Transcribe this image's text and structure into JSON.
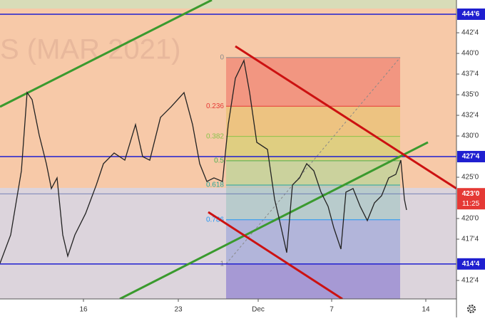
{
  "chart_data": {
    "type": "line",
    "watermark": "S (MAR 2021)",
    "xlim": [
      0,
      160
    ],
    "ylim": [
      410.26,
      446.47
    ],
    "xticks": [
      {
        "value": 29.25,
        "label": "16"
      },
      {
        "value": 62.5,
        "label": "23"
      },
      {
        "value": 90.5,
        "label": "Dec"
      },
      {
        "value": 116.25,
        "label": "7"
      },
      {
        "value": 149.25,
        "label": "14"
      }
    ],
    "yticks": [
      {
        "value": 442.5,
        "label": "442'4"
      },
      {
        "value": 440,
        "label": "440'0"
      },
      {
        "value": 437.5,
        "label": "437'4"
      },
      {
        "value": 435,
        "label": "435'0"
      },
      {
        "value": 432.5,
        "label": "432'4"
      },
      {
        "value": 430,
        "label": "430'0"
      },
      {
        "value": 425,
        "label": "425'0"
      },
      {
        "value": 420,
        "label": "420'0"
      },
      {
        "value": 417.5,
        "label": "417'4"
      },
      {
        "value": 412.5,
        "label": "412'4"
      }
    ],
    "series": [
      {
        "color": "#222222",
        "x": [
          0,
          3.75,
          7.5,
          9.5,
          11.25,
          13.75,
          16.25,
          18,
          20,
          22,
          23.75,
          26.25,
          30,
          33.75,
          36.25,
          40,
          43.75,
          47.5,
          50,
          52.5,
          56.25,
          60,
          64.5,
          67.5,
          70,
          72.5,
          75,
          78,
          80,
          82.5,
          85.5,
          87.5,
          90,
          93.75,
          96.25,
          98,
          100.5,
          102.5,
          105,
          107.5,
          110,
          112.5,
          115,
          117,
          119.5,
          121.25,
          123.75,
          126.25,
          128.75,
          131.25,
          133.75,
          136.25,
          138.75,
          140.5,
          141.75,
          142.5
        ],
        "values": [
          414.57,
          418.02,
          425.78,
          435.26,
          434.4,
          430.09,
          426.64,
          423.63,
          424.92,
          418.02,
          415.44,
          418.02,
          420.61,
          424.06,
          426.64,
          427.94,
          427.07,
          431.38,
          427.5,
          427.07,
          432.25,
          433.54,
          435.26,
          431.38,
          426.64,
          424.49,
          424.92,
          424.49,
          431.38,
          436.99,
          439.14,
          435.26,
          429.23,
          428.37,
          422.33,
          419.75,
          415.87,
          424.06,
          424.92,
          426.64,
          425.78,
          423.2,
          421.47,
          418.88,
          416.3,
          423.2,
          423.63,
          421.47,
          419.75,
          421.9,
          422.76,
          424.92,
          425.35,
          427.07,
          422.33,
          421.04
        ]
      }
    ],
    "price_lines": [
      {
        "value": 444.75,
        "label": "444'6",
        "color": "#1f1fd0"
      },
      {
        "value": 427.5,
        "label": "427'4",
        "color": "#1f1fd0"
      },
      {
        "value": 414.5,
        "label": "414'4",
        "color": "#1f1fd0"
      }
    ],
    "last_price": {
      "value": 423,
      "label": "423'0",
      "color": "#e53935",
      "countdown": "11:25"
    },
    "fib": {
      "x": [
        79.25,
        140.25
      ],
      "start": 439.5,
      "end": 414.5,
      "levels": [
        {
          "value": 0,
          "label": "0",
          "color": "#8a8a8a",
          "fill": "#f08070"
        },
        {
          "value": 0.236,
          "label": "0.236",
          "color": "#e53935",
          "fill": "#e8c070"
        },
        {
          "value": 0.382,
          "label": "0.382",
          "color": "#8bc34a",
          "fill": "#d4d070"
        },
        {
          "value": 0.5,
          "label": "0.5",
          "color": "#4caf50",
          "fill": "#b8d698"
        },
        {
          "value": 0.618,
          "label": "0.618",
          "color": "#26a69a",
          "fill": "#a8c8c4"
        },
        {
          "value": 0.786,
          "label": "0.786",
          "color": "#2196f3",
          "fill": "#a0a8d8"
        },
        {
          "value": 1,
          "label": "1",
          "color": "#8a8a8a",
          "fill": "#8f80d0"
        }
      ]
    },
    "trend_lines": [
      {
        "color": "#3a9a2e",
        "points": [
          [
            0,
            433.54
          ],
          [
            74.25,
            446.47
          ]
        ]
      },
      {
        "color": "#3a9a2e",
        "points": [
          [
            42,
            410.26
          ],
          [
            150,
            429.23
          ]
        ]
      },
      {
        "color": "#cc1111",
        "points": [
          [
            82.5,
            440.87
          ],
          [
            160,
            423.63
          ]
        ]
      },
      {
        "color": "#cc1111",
        "points": [
          [
            73,
            420.78
          ],
          [
            120,
            410.26
          ]
        ]
      }
    ]
  }
}
